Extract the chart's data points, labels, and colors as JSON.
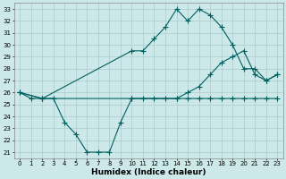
{
  "xlabel": "Humidex (Indice chaleur)",
  "bg_color": "#cce8e8",
  "grid_color": "#aacccc",
  "line_color": "#006060",
  "xlim": [
    -0.5,
    23.5
  ],
  "ylim": [
    20.5,
    33.5
  ],
  "xticks": [
    0,
    1,
    2,
    3,
    4,
    5,
    6,
    7,
    8,
    9,
    10,
    11,
    12,
    13,
    14,
    15,
    16,
    17,
    18,
    19,
    20,
    21,
    22,
    23
  ],
  "yticks": [
    21,
    22,
    23,
    24,
    25,
    26,
    27,
    28,
    29,
    30,
    31,
    32,
    33
  ],
  "line1_x": [
    0,
    1,
    2,
    3,
    4,
    5,
    6,
    7,
    8,
    9,
    10,
    11,
    12,
    13,
    14,
    15,
    16,
    17,
    18,
    19,
    20,
    21,
    22,
    23
  ],
  "line1_y": [
    26.0,
    25.5,
    25.5,
    25.5,
    23.5,
    22.5,
    21.0,
    21.0,
    21.0,
    23.5,
    25.5,
    25.5,
    25.5,
    25.5,
    25.5,
    25.5,
    25.5,
    25.5,
    25.5,
    25.5,
    25.5,
    25.5,
    25.5,
    25.5
  ],
  "line2_x": [
    0,
    2,
    10,
    14,
    15,
    16,
    17,
    18,
    19,
    20,
    21,
    22,
    23
  ],
  "line2_y": [
    26.0,
    25.5,
    25.5,
    25.5,
    26.0,
    26.5,
    27.5,
    28.5,
    29.0,
    29.5,
    27.5,
    27.0,
    27.5
  ],
  "line3_x": [
    0,
    2,
    10,
    11,
    12,
    13,
    14,
    15,
    16,
    17,
    18,
    19,
    20,
    21,
    22,
    23
  ],
  "line3_y": [
    26.0,
    25.5,
    29.5,
    29.5,
    30.5,
    31.5,
    33.0,
    32.0,
    33.0,
    32.5,
    31.5,
    30.0,
    28.0,
    28.0,
    27.0,
    27.5
  ],
  "marker": "+",
  "markersize": 4,
  "linewidth": 0.8,
  "tick_fontsize": 5,
  "xlabel_fontsize": 6.5
}
